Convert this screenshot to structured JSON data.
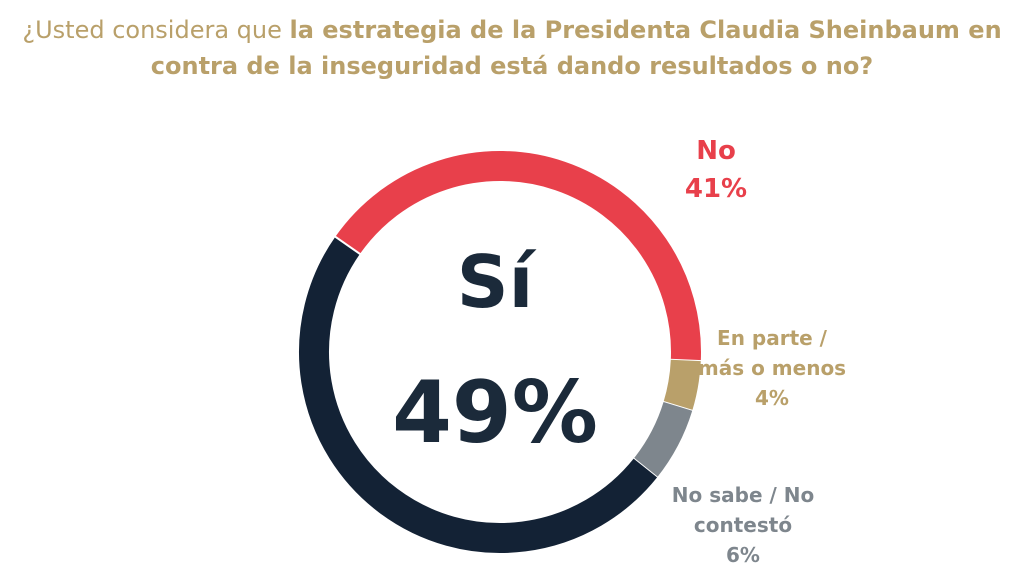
{
  "title": {
    "prefix": "¿Usted considera que ",
    "bold_line1": "la estrategia de la Presidenta Claudia Sheinbaum en",
    "bold_line2": "contra de la inseguridad está dando resultados o no?"
  },
  "chart_data": {
    "type": "pie",
    "style": "donut",
    "slices": [
      {
        "name": "Sí",
        "value": 49,
        "label": "49%",
        "color": "#132235"
      },
      {
        "name": "No",
        "value": 41,
        "label": "41%",
        "color": "#e8404b"
      },
      {
        "name": "En parte / más o menos",
        "value": 4,
        "label": "4%",
        "color": "#b9a06a"
      },
      {
        "name": "No sabe / No contestó",
        "value": 6,
        "label": "6%",
        "color": "#7e868d"
      }
    ],
    "center": {
      "name": "Sí",
      "value": "49%"
    },
    "labels": {
      "no": {
        "line1": "No",
        "line2": "41%",
        "color": "#e8404b"
      },
      "en_parte": {
        "line1": "En parte /",
        "line2": "más o menos",
        "line3": "4%",
        "color": "#b9a06a"
      },
      "no_sabe": {
        "line1": "No sabe / No",
        "line2": "contestó",
        "line3": "6%",
        "color": "#7e868d"
      }
    }
  }
}
